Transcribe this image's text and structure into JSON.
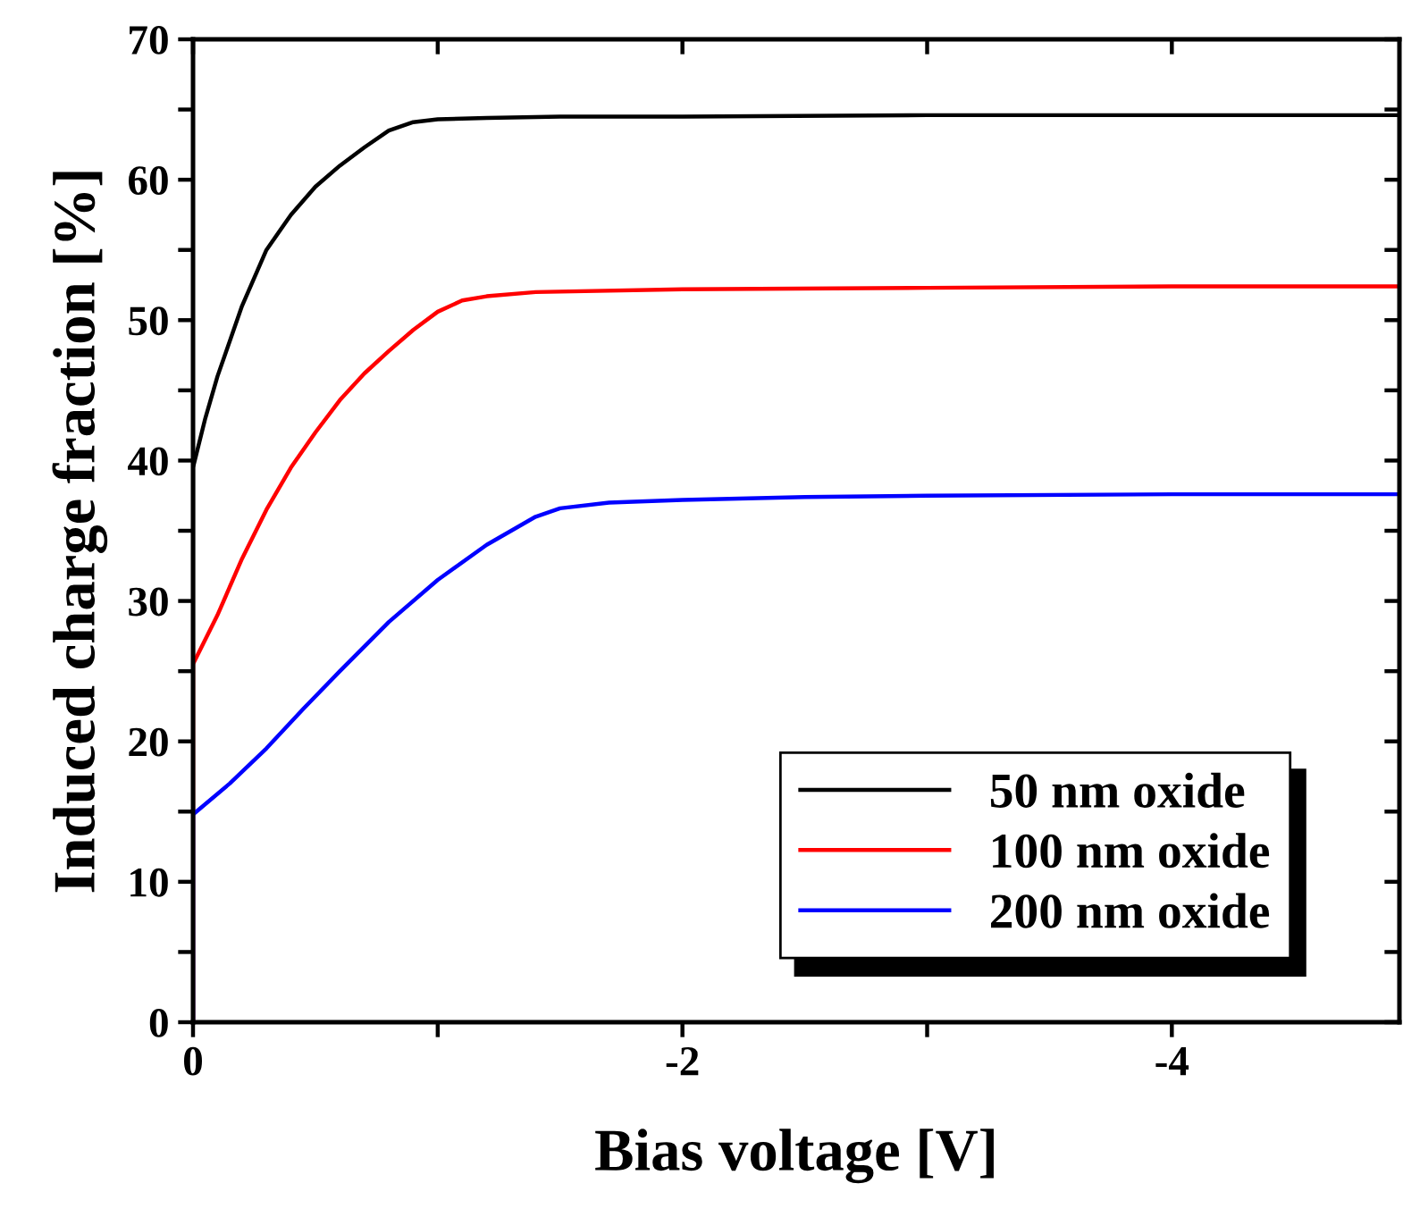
{
  "chart_data": {
    "type": "line",
    "xlabel": "Bias voltage [V]",
    "ylabel": "Induced charge fraction [%]",
    "xlim": [
      0,
      -4.93
    ],
    "xticks": [
      0,
      {
        "value": -1,
        "label": null
      },
      -2,
      {
        "value": -3,
        "label": null
      },
      -4
    ],
    "ylim": [
      0,
      70
    ],
    "yticks": [
      0,
      {
        "value": 5,
        "label": null
      },
      10,
      {
        "value": 15,
        "label": null
      },
      20,
      {
        "value": 25,
        "label": null
      },
      30,
      {
        "value": 35,
        "label": null
      },
      40,
      {
        "value": 45,
        "label": null
      },
      50,
      {
        "value": 55,
        "label": null
      },
      60,
      {
        "value": 65,
        "label": null
      },
      70
    ],
    "grid": false,
    "legend": "bottom right",
    "line_style": "solid",
    "marker": "none",
    "series": [
      {
        "name": "50 nm oxide",
        "color": "#000000",
        "x": [
          0,
          0,
          -0.05,
          -0.1,
          -0.2,
          -0.3,
          -0.4,
          -0.5,
          -0.6,
          -0.7,
          -0.8,
          -0.9,
          -1.0,
          -1.2,
          -1.5,
          -2,
          -3,
          -4,
          -4.93
        ],
        "values": [
          0,
          39.5,
          43,
          46,
          51,
          55,
          57.5,
          59.5,
          61,
          62.3,
          63.5,
          64.1,
          64.3,
          64.4,
          64.5,
          64.5,
          64.6,
          64.6,
          64.6
        ]
      },
      {
        "name": "100 nm oxide",
        "color": "#ff0000",
        "x": [
          0,
          0,
          -0.1,
          -0.2,
          -0.3,
          -0.4,
          -0.5,
          -0.6,
          -0.7,
          -0.8,
          -0.9,
          -1.0,
          -1.1,
          -1.2,
          -1.4,
          -2,
          -3,
          -4,
          -4.93
        ],
        "values": [
          0,
          25.5,
          29,
          33,
          36.5,
          39.5,
          42,
          44.3,
          46.2,
          47.8,
          49.3,
          50.6,
          51.4,
          51.7,
          52,
          52.2,
          52.3,
          52.4,
          52.4
        ]
      },
      {
        "name": "200 nm oxide",
        "color": "#0000ff",
        "x": [
          0,
          0,
          -0.15,
          -0.3,
          -0.45,
          -0.6,
          -0.8,
          -1.0,
          -1.2,
          -1.4,
          -1.5,
          -1.7,
          -2,
          -2.5,
          -3,
          -4,
          -4.93
        ],
        "values": [
          0,
          14.8,
          17,
          19.5,
          22.3,
          25,
          28.5,
          31.5,
          34,
          36,
          36.6,
          37,
          37.2,
          37.4,
          37.5,
          37.6,
          37.6
        ]
      }
    ]
  }
}
